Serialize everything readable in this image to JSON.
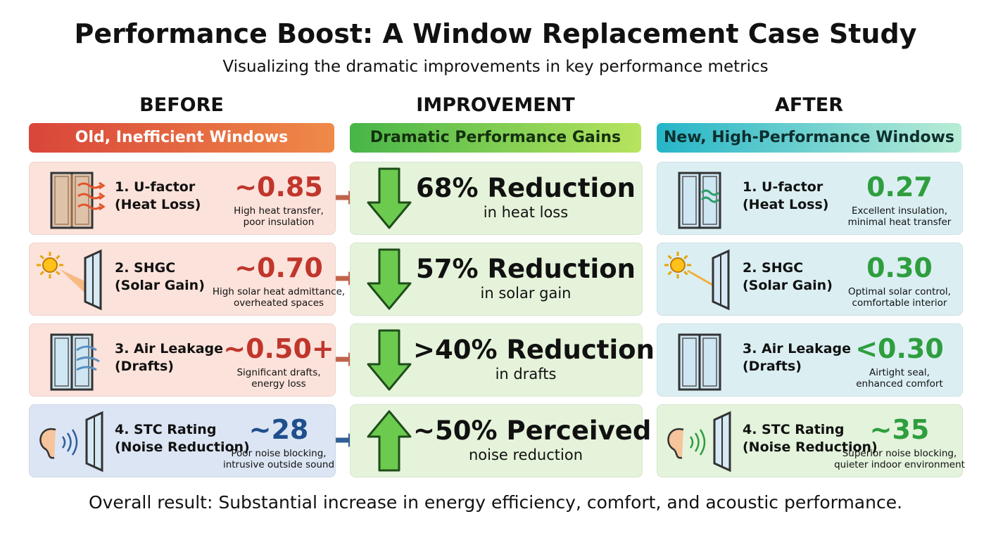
{
  "header": {
    "title": "Performance Boost: A Window Replacement Case Study",
    "subtitle": "Visualizing the dramatic improvements in key performance metrics"
  },
  "columns": [
    {
      "heading": "BEFORE",
      "banner": "Old, Inefficient Windows"
    },
    {
      "heading": "IMPROVEMENT",
      "banner": "Dramatic Performance Gains"
    },
    {
      "heading": "AFTER",
      "banner": "New, High-Performance Windows"
    }
  ],
  "rows": [
    {
      "before": {
        "metric": "1. U-factor",
        "detail": "(Heat Loss)",
        "value": "~0.85",
        "note": [
          "High heat transfer,",
          "poor insulation"
        ]
      },
      "improvement": {
        "headline": "68% Reduction",
        "caption": "in heat loss"
      },
      "after": {
        "metric": "1. U-factor",
        "detail": "(Heat Loss)",
        "value": "0.27",
        "note": [
          "Excellent insulation,",
          "minimal heat transfer"
        ]
      }
    },
    {
      "before": {
        "metric": "2. SHGC",
        "detail": "(Solar Gain)",
        "value": "~0.70",
        "note": [
          "High solar heat admittance,",
          "overheated spaces"
        ]
      },
      "improvement": {
        "headline": "57% Reduction",
        "caption": "in solar gain"
      },
      "after": {
        "metric": "2. SHGC",
        "detail": "(Solar Gain)",
        "value": "0.30",
        "note": [
          "Optimal solar control,",
          "comfortable interior"
        ]
      }
    },
    {
      "before": {
        "metric": "3. Air Leakage",
        "detail": "(Drafts)",
        "value": "~0.50+",
        "note": [
          "Significant drafts,",
          "energy loss"
        ]
      },
      "improvement": {
        "headline": ">40% Reduction",
        "caption": "in drafts"
      },
      "after": {
        "metric": "3. Air Leakage",
        "detail": "(Drafts)",
        "value": "<0.30",
        "note": [
          "Airtight seal,",
          "enhanced comfort"
        ]
      }
    },
    {
      "before": {
        "metric": "4. STC Rating",
        "detail": "(Noise Reduction)",
        "value": "~28",
        "note": [
          "Poor noise blocking,",
          "intrusive outside sound"
        ]
      },
      "improvement": {
        "headline": "~50% Perceived",
        "caption": "noise reduction"
      },
      "after": {
        "metric": "4. STC Rating",
        "detail": "(Noise Reduction)",
        "value": "~35",
        "note": [
          "Superior noise blocking,",
          "quieter indoor environment"
        ]
      }
    }
  ],
  "footer": "Overall result: Substantial increase in energy efficiency, comfort, and acoustic performance."
}
